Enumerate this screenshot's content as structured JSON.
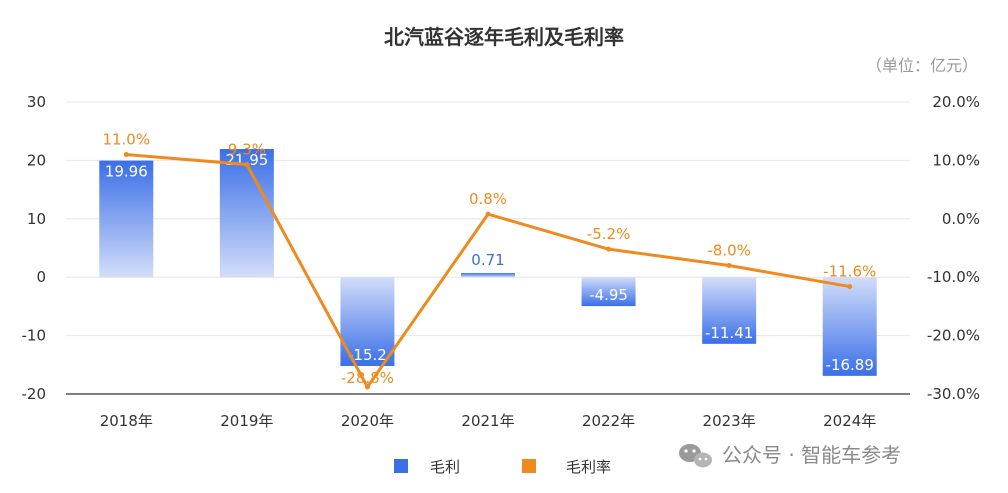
{
  "chart_data": {
    "type": "bar",
    "title": "北汽蓝谷逐年毛利及毛利率",
    "unit_note": "（单位：亿元）",
    "categories": [
      "2018年",
      "2019年",
      "2020年",
      "2021年",
      "2022年",
      "2023年",
      "2024年"
    ],
    "series": [
      {
        "name": "毛利",
        "type": "bar",
        "axis": "left",
        "values": [
          19.96,
          21.95,
          -15.2,
          0.71,
          -4.95,
          -11.41,
          -16.89
        ],
        "labels": [
          "19.96",
          "21.95",
          "-15.2",
          "0.71",
          "-4.95",
          "-11.41",
          "-16.89"
        ],
        "color": "#3a6fe8",
        "color_light": "#c9d6f8"
      },
      {
        "name": "毛利率",
        "type": "line",
        "axis": "right",
        "values": [
          11.0,
          9.3,
          -28.8,
          0.8,
          -5.2,
          -8.0,
          -11.6
        ],
        "labels": [
          "11.0%",
          "9.3%",
          "-28.8%",
          "0.8%",
          "-5.2%",
          "-8.0%",
          "-11.6%"
        ],
        "color": "#ee8a1e"
      }
    ],
    "y_left": {
      "ylim": [
        -20,
        30
      ],
      "ticks": [
        "30",
        "20",
        "10",
        "0",
        "-10",
        "-20"
      ],
      "tick_values": [
        30,
        20,
        10,
        0,
        -10,
        -20
      ]
    },
    "y_right": {
      "ylim": [
        -30,
        20
      ],
      "ticks": [
        "20.0%",
        "10.0%",
        "0.0%",
        "-10.0%",
        "-20.0%",
        "-30.0%"
      ],
      "tick_values": [
        20,
        10,
        0,
        -10,
        -20,
        -30
      ]
    },
    "grid": true,
    "legend_position": "bottom-center"
  },
  "watermark": "公众号 · 智能车参考",
  "colors": {
    "grid": "#e6e6e6",
    "axis": "#333333"
  }
}
